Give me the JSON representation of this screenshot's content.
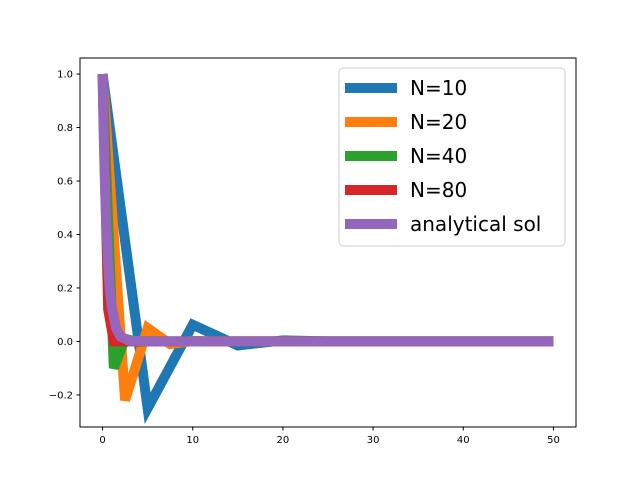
{
  "chart_data": {
    "type": "line",
    "title": "",
    "xlabel": "",
    "ylabel": "",
    "xlim": [
      -2.5,
      52.5
    ],
    "ylim": [
      -0.32,
      1.06
    ],
    "grid": false,
    "legend_placement": "upper right",
    "x_ticks": [
      {
        "value": 0,
        "label": "0"
      },
      {
        "value": 10,
        "label": "10"
      },
      {
        "value": 20,
        "label": "20"
      },
      {
        "value": 30,
        "label": "30"
      },
      {
        "value": 40,
        "label": "40"
      },
      {
        "value": 50,
        "label": "50"
      }
    ],
    "y_ticks": [
      {
        "value": -0.2,
        "label": "−0.2"
      },
      {
        "value": 0.0,
        "label": "0.0"
      },
      {
        "value": 0.2,
        "label": "0.2"
      },
      {
        "value": 0.4,
        "label": "0.4"
      },
      {
        "value": 0.6,
        "label": "0.6"
      },
      {
        "value": 0.8,
        "label": "0.8"
      },
      {
        "value": 1.0,
        "label": "1.0"
      }
    ],
    "series": [
      {
        "name": "N=10",
        "color": "#1f77b4",
        "x": [
          0,
          5,
          10,
          15,
          20,
          25,
          30,
          35,
          40,
          45,
          50
        ],
        "y": [
          1.0,
          -0.25,
          0.0625,
          -0.015,
          0.004,
          0.0,
          0.0,
          0.0,
          0.0,
          0.0,
          0.0
        ]
      },
      {
        "name": "N=20",
        "color": "#ff7f0e",
        "x": [
          0,
          2.5,
          5,
          7.5,
          10,
          12.5,
          15,
          20,
          25,
          30,
          35,
          40,
          45,
          50
        ],
        "y": [
          1.0,
          -0.22,
          0.05,
          -0.01,
          0.002,
          0.0,
          0.0,
          0.0,
          0.0,
          0.0,
          0.0,
          0.0,
          0.0,
          0.0
        ]
      },
      {
        "name": "N=40",
        "color": "#2ca02c",
        "x": [
          0,
          1.25,
          2.5,
          3.75,
          5,
          6.25,
          10,
          20,
          30,
          40,
          50
        ],
        "y": [
          1.0,
          -0.1,
          0.01,
          -0.001,
          0.0,
          0.0,
          0.0,
          0.0,
          0.0,
          0.0,
          0.0
        ]
      },
      {
        "name": "N=80",
        "color": "#d62728",
        "x": [
          0,
          0.625,
          1.25,
          1.875,
          2.5,
          5,
          10,
          20,
          30,
          40,
          50
        ],
        "y": [
          1.0,
          0.12,
          0.0,
          0.0,
          0.0,
          0.0,
          0.0,
          0.0,
          0.0,
          0.0,
          0.0
        ]
      },
      {
        "name": "analytical sol",
        "color": "#9467bd",
        "x": [
          0,
          0.1,
          0.2,
          0.3,
          0.4,
          0.6,
          0.8,
          1.0,
          1.5,
          2,
          3,
          5,
          10,
          20,
          30,
          40,
          50
        ],
        "y": [
          1.0,
          0.82,
          0.67,
          0.55,
          0.45,
          0.3,
          0.2,
          0.135,
          0.05,
          0.018,
          0.0025,
          0.0,
          0.0,
          0.0,
          0.0,
          0.0,
          0.0
        ]
      }
    ]
  }
}
